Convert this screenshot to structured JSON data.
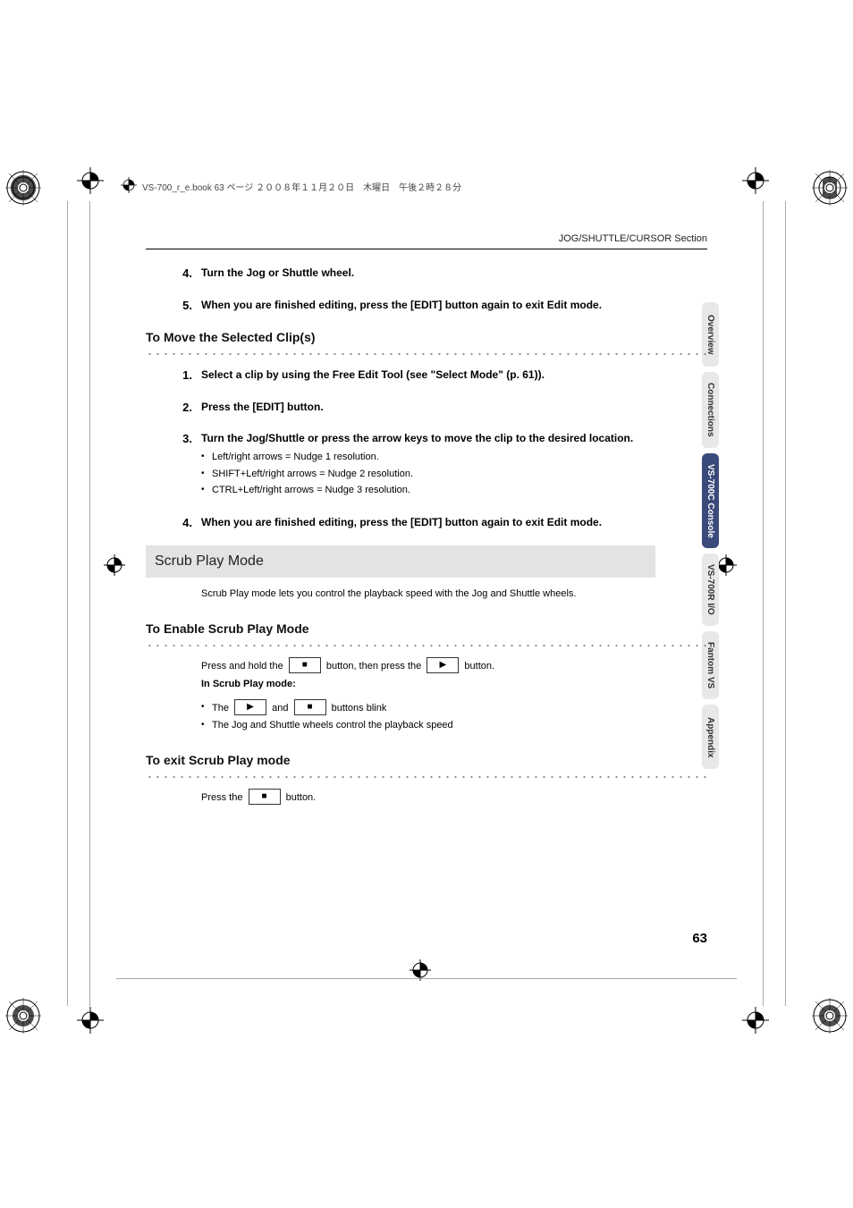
{
  "book_header": "VS-700_r_e.book  63 ページ  ２００８年１１月２０日　木曜日　午後２時２８分",
  "section_label": "JOG/SHUTTLE/CURSOR Section",
  "resume_steps": [
    {
      "num": "4.",
      "title": "Turn the Jog or Shuttle wheel."
    },
    {
      "num": "5.",
      "title": "When you are finished editing, press the [EDIT] button again to exit Edit mode."
    }
  ],
  "move_heading": "To Move the Selected Clip(s)",
  "move_steps": [
    {
      "num": "1.",
      "title": "Select a clip by using the Free Edit Tool (see \"Select Mode\" (p. 61))."
    },
    {
      "num": "2.",
      "title": "Press the [EDIT] button."
    },
    {
      "num": "3.",
      "title": "Turn the Jog/Shuttle or press the arrow keys to move the clip to the desired location.",
      "subs": [
        "Left/right arrows = Nudge 1 resolution.",
        "SHIFT+Left/right arrows = Nudge 2 resolution.",
        "CTRL+Left/right arrows = Nudge 3 resolution."
      ]
    },
    {
      "num": "4.",
      "title": "When you are finished editing, press the [EDIT] button again to exit Edit mode."
    }
  ],
  "scrub_heading": "Scrub Play Mode",
  "scrub_intro": "Scrub Play mode lets you control the playback speed with the Jog and Shuttle wheels.",
  "enable_heading": "To Enable Scrub Play Mode",
  "enable_line_1a": "Press and hold the",
  "enable_line_1b": "button, then press the",
  "enable_line_1c": "button.",
  "enable_line_2": "In Scrub Play mode:",
  "enable_bullets_a": "The",
  "enable_bullets_b": "and",
  "enable_bullets_c": "buttons blink",
  "enable_bullet_2": "The Jog and Shuttle wheels control the playback speed",
  "exit_heading": "To exit Scrub Play mode",
  "exit_line_a": "Press the",
  "exit_line_b": "button.",
  "tabs": [
    {
      "label": "Overview",
      "active": false
    },
    {
      "label": "Connections",
      "active": false
    },
    {
      "label": "VS-700C Console",
      "active": true
    },
    {
      "label": "VS-700R I/O",
      "active": false
    },
    {
      "label": "Fantom VS",
      "active": false
    },
    {
      "label": "Appendix",
      "active": false
    }
  ],
  "page_number": "63",
  "icons": {
    "stop": "■",
    "play": "▶"
  },
  "colors": {
    "tab_active_bg": "#3a4a7a",
    "tab_bg": "#e8e8e8",
    "h2_bg": "#e3e3e3"
  }
}
